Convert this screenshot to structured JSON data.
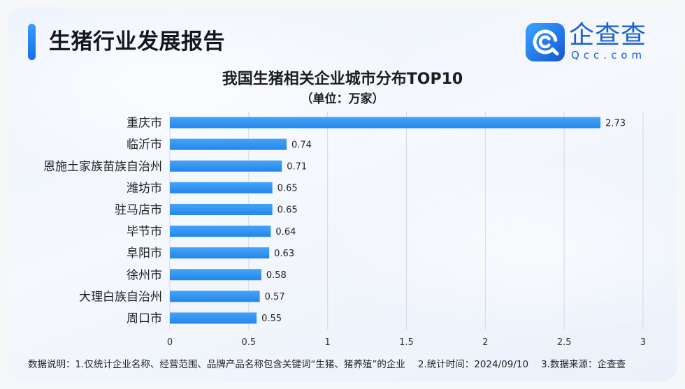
{
  "header": {
    "title": "生猪行业发展报告"
  },
  "logo": {
    "icon": "qcc-logo-icon",
    "name": "企查查",
    "domain": "Qcc.com"
  },
  "colors": {
    "accent": "#1670ec",
    "title": "#16161f",
    "brand": "#1b60cf",
    "bar": "#2386ed",
    "grid": "#d3d9e3"
  },
  "chart_data": {
    "type": "bar",
    "orientation": "horizontal",
    "title": "我国生猪相关企业城市分布TOP10",
    "subtitle": "（单位：万家）",
    "categories": [
      "重庆市",
      "临沂市",
      "恩施土家族苗族自治州",
      "潍坊市",
      "驻马店市",
      "毕节市",
      "阜阳市",
      "徐州市",
      "大理白族自治州",
      "周口市"
    ],
    "values": [
      2.73,
      0.74,
      0.71,
      0.65,
      0.65,
      0.64,
      0.63,
      0.58,
      0.57,
      0.55
    ],
    "xlabel": "",
    "ylabel": "",
    "xlim": [
      0,
      3
    ],
    "xticks": [
      0,
      0.5,
      1,
      1.5,
      2,
      2.5,
      3
    ],
    "grid": true,
    "legend": "none",
    "data_labels": true
  },
  "footer": {
    "label": "数据说明：",
    "items": [
      "1.仅统计企业名称、经营范围、品牌产品名称包含关键词“生猪、猪养殖”的企业",
      "2.统计时间：2024/09/10",
      "3.数据来源：企查查"
    ]
  }
}
